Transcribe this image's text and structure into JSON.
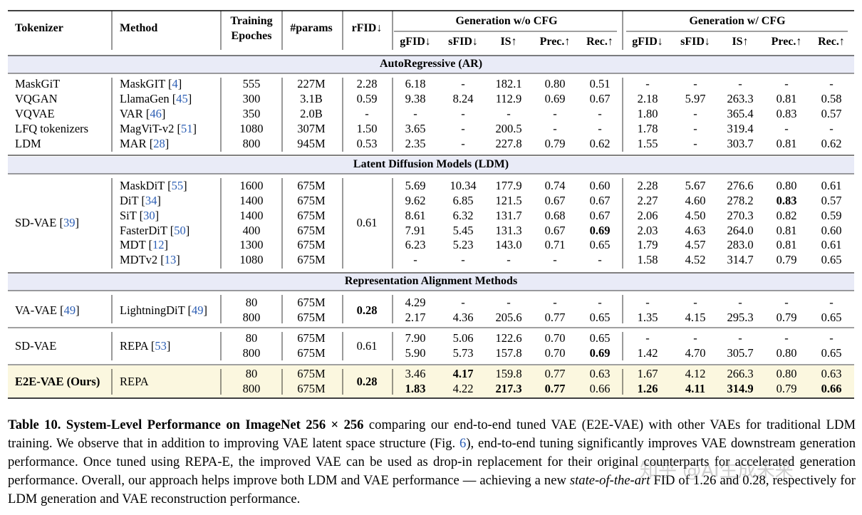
{
  "headers": {
    "tokenizer": "Tokenizer",
    "method": "Method",
    "epochs_1": "Training",
    "epochs_2": "Epoches",
    "params": "#params",
    "rfid": "rFID↓",
    "group_wo": "Generation w/o CFG",
    "group_w": "Generation w/ CFG",
    "sub": [
      "gFID↓",
      "sFID↓",
      "IS↑",
      "Prec.↑",
      "Rec.↑",
      "gFID↓",
      "sFID↓",
      "IS↑",
      "Prec.↑",
      "Rec.↑"
    ]
  },
  "sections": {
    "ar": "AutoRegressive (AR)",
    "ldm": "Latent Diffusion Models (LDM)",
    "repa": "Representation Alignment Methods"
  },
  "ar_rows": [
    {
      "tok": "MaskGiT",
      "method": "MaskGIT",
      "cite": "4",
      "ep": "555",
      "params": "227M",
      "rfid": "2.28",
      "v": [
        "6.18",
        "-",
        "182.1",
        "0.80",
        "0.51",
        "-",
        "-",
        "-",
        "-",
        "-"
      ]
    },
    {
      "tok": "VQGAN",
      "method": "LlamaGen",
      "cite": "45",
      "ep": "300",
      "params": "3.1B",
      "rfid": "0.59",
      "v": [
        "9.38",
        "8.24",
        "112.9",
        "0.69",
        "0.67",
        "2.18",
        "5.97",
        "263.3",
        "0.81",
        "0.58"
      ]
    },
    {
      "tok": "VQVAE",
      "method": "VAR",
      "cite": "46",
      "ep": "350",
      "params": "2.0B",
      "rfid": "-",
      "v": [
        "-",
        "-",
        "-",
        "-",
        "-",
        "1.80",
        "-",
        "365.4",
        "0.83",
        "0.57"
      ]
    },
    {
      "tok": "LFQ tokenizers",
      "method": "MagViT-v2",
      "cite": "51",
      "ep": "1080",
      "params": "307M",
      "rfid": "1.50",
      "v": [
        "3.65",
        "-",
        "200.5",
        "-",
        "-",
        "1.78",
        "-",
        "319.4",
        "-",
        "-"
      ]
    },
    {
      "tok": "LDM",
      "method": "MAR",
      "cite": "28",
      "ep": "800",
      "params": "945M",
      "rfid": "0.53",
      "v": [
        "2.35",
        "-",
        "227.8",
        "0.79",
        "0.62",
        "1.55",
        "-",
        "303.7",
        "0.81",
        "0.62"
      ]
    }
  ],
  "ldm_group": {
    "tok": "SD-VAE",
    "cite": "39",
    "rfid": "0.61"
  },
  "ldm_rows": [
    {
      "method": "MaskDiT",
      "cite": "55",
      "ep": "1600",
      "params": "675M",
      "v": [
        "5.69",
        "10.34",
        "177.9",
        "0.74",
        "0.60",
        "2.28",
        "5.67",
        "276.6",
        "0.80",
        "0.61"
      ]
    },
    {
      "method": "DiT",
      "cite": "34",
      "ep": "1400",
      "params": "675M",
      "v": [
        "9.62",
        "6.85",
        "121.5",
        "0.67",
        "0.67",
        "2.27",
        "4.60",
        "278.2",
        "0.83",
        "0.57"
      ]
    },
    {
      "method": "SiT",
      "cite": "30",
      "ep": "1400",
      "params": "675M",
      "v": [
        "8.61",
        "6.32",
        "131.7",
        "0.68",
        "0.67",
        "2.06",
        "4.50",
        "270.3",
        "0.82",
        "0.59"
      ]
    },
    {
      "method": "FasterDiT",
      "cite": "50",
      "ep": "400",
      "params": "675M",
      "v": [
        "7.91",
        "5.45",
        "131.3",
        "0.67",
        "0.69",
        "2.03",
        "4.63",
        "264.0",
        "0.81",
        "0.60"
      ]
    },
    {
      "method": "MDT",
      "cite": "12",
      "ep": "1300",
      "params": "675M",
      "v": [
        "6.23",
        "5.23",
        "143.0",
        "0.71",
        "0.65",
        "1.79",
        "4.57",
        "283.0",
        "0.81",
        "0.61"
      ]
    },
    {
      "method": "MDTv2",
      "cite": "13",
      "ep": "1080",
      "params": "675M",
      "v": [
        "-",
        "-",
        "-",
        "-",
        "-",
        "1.58",
        "4.52",
        "314.7",
        "0.79",
        "0.65"
      ]
    }
  ],
  "repa_groups": [
    {
      "tok": "VA-VAE",
      "cite": "49",
      "method": "LightningDiT",
      "mcite": "49",
      "rfid": "0.28",
      "rows": [
        {
          "ep": "80",
          "params": "675M",
          "v": [
            "4.29",
            "-",
            "-",
            "-",
            "-",
            "-",
            "-",
            "-",
            "-",
            "-"
          ]
        },
        {
          "ep": "800",
          "params": "675M",
          "v": [
            "2.17",
            "4.36",
            "205.6",
            "0.77",
            "0.65",
            "1.35",
            "4.15",
            "295.3",
            "0.79",
            "0.65"
          ]
        }
      ]
    },
    {
      "tok": "SD-VAE",
      "cite": "",
      "method": "REPA",
      "mcite": "53",
      "rfid": "0.61",
      "rows": [
        {
          "ep": "80",
          "params": "675M",
          "v": [
            "7.90",
            "5.06",
            "122.6",
            "0.70",
            "0.65",
            "-",
            "-",
            "-",
            "-",
            "-"
          ]
        },
        {
          "ep": "800",
          "params": "675M",
          "v": [
            "5.90",
            "5.73",
            "157.8",
            "0.70",
            "0.69",
            "1.42",
            "4.70",
            "305.7",
            "0.80",
            "0.65"
          ]
        }
      ]
    },
    {
      "tok": "E2E-VAE (Ours)",
      "cite": "",
      "method": "REPA",
      "mcite": "",
      "rfid": "0.28",
      "rows": [
        {
          "ep": "80",
          "params": "675M",
          "v": [
            "3.46",
            "4.17",
            "159.8",
            "0.77",
            "0.63",
            "1.67",
            "4.12",
            "266.3",
            "0.80",
            "0.63"
          ]
        },
        {
          "ep": "800",
          "params": "675M",
          "v": [
            "1.83",
            "4.22",
            "217.3",
            "0.77",
            "0.66",
            "1.26",
            "4.11",
            "314.9",
            "0.79",
            "0.66"
          ]
        }
      ]
    }
  ],
  "caption": {
    "label": "Table 10.",
    "title": "System-Level Performance on ImageNet 256 × 256",
    "t1": " comparing our end-to-end tuned VAE (E2E-VAE) with other VAEs for traditional LDM training. We observe that in addition to improving VAE latent space structure (Fig. ",
    "fig": "6",
    "t2": "), end-to-end tuning significantly improves VAE downstream generation performance. Once tuned using REPA-E, the improved VAE can be used as drop-in replacement for their original counterparts for accelerated generation performance. Overall, our approach helps improve both LDM and VAE performance — achieving a new ",
    "sota": "state-of-the-art",
    "t3": " FID of 1.26 and 0.28, respectively for LDM generation and VAE reconstruction performance."
  },
  "watermark": "知乎 @AI生成未来"
}
